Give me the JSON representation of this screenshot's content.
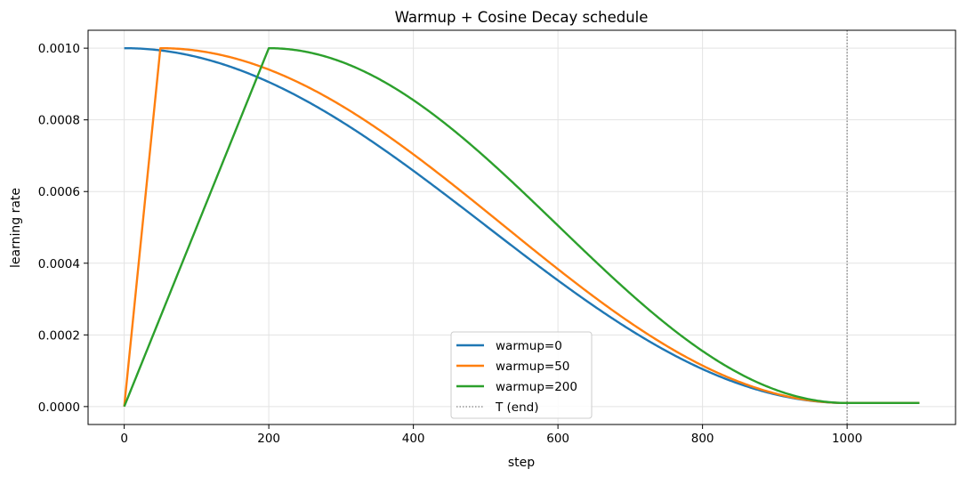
{
  "chart_data": {
    "type": "line",
    "title": "Warmup + Cosine Decay schedule",
    "xlabel": "step",
    "ylabel": "learning rate",
    "xlim": [
      -50,
      1150
    ],
    "ylim": [
      -5e-05,
      0.00105
    ],
    "x_ticks": [
      0,
      200,
      400,
      600,
      800,
      1000
    ],
    "x_tick_labels": [
      "0",
      "200",
      "400",
      "600",
      "800",
      "1000"
    ],
    "y_ticks": [
      0.0,
      0.0002,
      0.0004,
      0.0006,
      0.0008,
      0.001
    ],
    "y_tick_labels": [
      "0.0000",
      "0.0002",
      "0.0004",
      "0.0006",
      "0.0008",
      "0.0010"
    ],
    "grid": true,
    "legend_position": "lower-center",
    "schedule": {
      "lr_max": 0.001,
      "lr_min": 1e-05,
      "total_steps": 1000,
      "last_step": 1100
    },
    "series": [
      {
        "name": "warmup=0",
        "warmup": 0,
        "color": "#1f77b4"
      },
      {
        "name": "warmup=50",
        "warmup": 50,
        "color": "#ff7f0e"
      },
      {
        "name": "warmup=200",
        "warmup": 200,
        "color": "#2ca02c"
      }
    ],
    "vline": {
      "name": "T (end)",
      "x": 1000,
      "color": "#808080",
      "style": "dotted"
    }
  }
}
